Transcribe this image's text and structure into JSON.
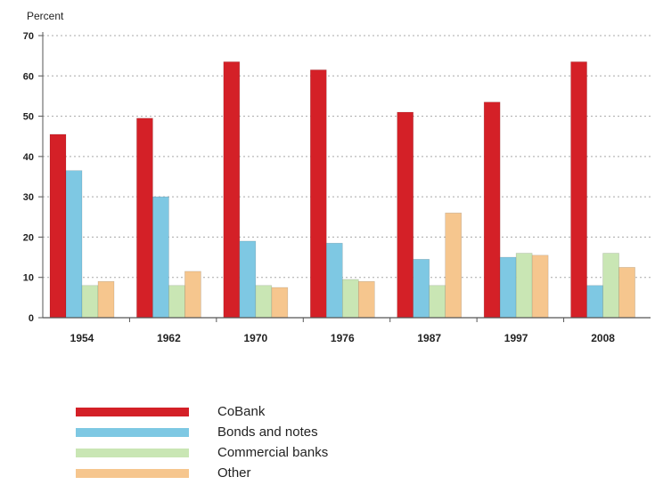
{
  "chart_data": {
    "type": "bar",
    "ylabel": "Percent",
    "ylim": [
      0,
      70
    ],
    "yticks": [
      0,
      10,
      20,
      30,
      40,
      50,
      60,
      70
    ],
    "grid": true,
    "legend_position": "bottom-left",
    "categories": [
      "1954",
      "1962",
      "1970",
      "1976",
      "1987",
      "1997",
      "2008"
    ],
    "series": [
      {
        "name": "CoBank",
        "color": "#d42027",
        "values": [
          45.5,
          49.5,
          63.5,
          61.5,
          51,
          53.5,
          63.5
        ]
      },
      {
        "name": "Bonds and notes",
        "color": "#7ec8e3",
        "values": [
          36.5,
          30,
          19,
          18.5,
          14.5,
          15,
          8
        ]
      },
      {
        "name": "Commercial banks",
        "color": "#c9e6b4",
        "values": [
          8,
          8,
          8,
          9.5,
          8,
          16,
          16
        ]
      },
      {
        "name": "Other",
        "color": "#f6c68e",
        "values": [
          9,
          11.5,
          7.5,
          9,
          26,
          15.5,
          12.5
        ]
      }
    ]
  }
}
